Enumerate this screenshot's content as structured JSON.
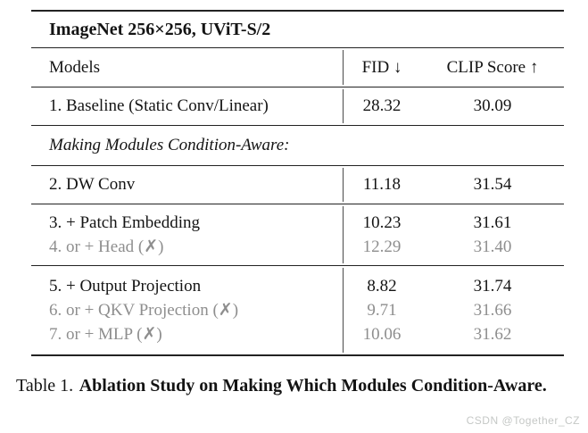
{
  "table": {
    "title": "ImageNet 256×256, UViT-S/2",
    "columns": [
      "Models",
      "FID ↓",
      "CLIP Score ↑"
    ],
    "section_label": "Making Modules Condition-Aware:",
    "rows": [
      {
        "model": "1. Baseline (Static Conv/Linear)",
        "fid": "28.32",
        "clip": "30.09"
      },
      {
        "model": "2. DW Conv",
        "fid": "11.18",
        "clip": "31.54"
      },
      {
        "model": "3. + Patch Embedding",
        "fid": "10.23",
        "clip": "31.61"
      },
      {
        "model": "4. or + Head (✗)",
        "fid": "12.29",
        "clip": "31.40"
      },
      {
        "model": "5. + Output Projection",
        "fid": "8.82",
        "clip": "31.74"
      },
      {
        "model": "6. or + QKV Projection (✗)",
        "fid": "9.71",
        "clip": "31.66"
      },
      {
        "model": "7. or + MLP (✗)",
        "fid": "10.06",
        "clip": "31.62"
      }
    ]
  },
  "caption": {
    "prefix": "Table 1.",
    "text": "Ablation Study on Making Which Modules Condition-Aware."
  },
  "watermark": "CSDN @Together_CZ",
  "colors": {
    "text": "#141414",
    "muted": "#8e8e8e",
    "rule": "#222222",
    "watermark": "#c5c8c6"
  }
}
